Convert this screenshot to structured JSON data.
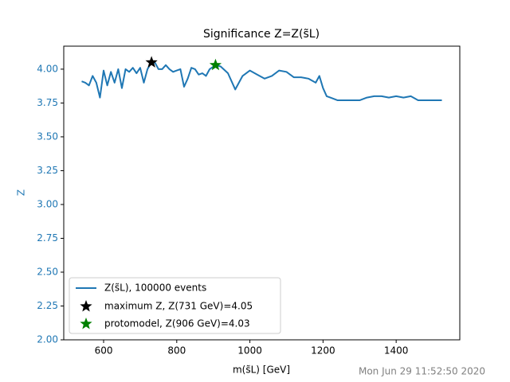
{
  "chart_data": {
    "type": "line",
    "title": "Significance Z=Z(s̃L)",
    "xlabel": "m(s̃L) [GeV]",
    "ylabel": "Z",
    "timestamp": "Mon Jun 29 11:52:50 2020",
    "x": [
      540,
      550,
      560,
      570,
      580,
      590,
      600,
      610,
      620,
      630,
      640,
      650,
      660,
      670,
      680,
      690,
      700,
      710,
      720,
      731,
      740,
      750,
      760,
      770,
      780,
      790,
      800,
      810,
      820,
      830,
      840,
      850,
      860,
      870,
      880,
      890,
      906,
      920,
      940,
      960,
      980,
      1000,
      1020,
      1040,
      1060,
      1080,
      1100,
      1120,
      1140,
      1160,
      1180,
      1190,
      1200,
      1210,
      1220,
      1240,
      1260,
      1280,
      1300,
      1320,
      1340,
      1360,
      1380,
      1400,
      1420,
      1440,
      1460,
      1480,
      1500,
      1525
    ],
    "series": [
      {
        "name": "Z(s̃L), 100000 events",
        "color": "#1f77b4",
        "values": [
          3.91,
          3.9,
          3.88,
          3.95,
          3.9,
          3.79,
          3.99,
          3.88,
          3.98,
          3.9,
          4.0,
          3.86,
          4.0,
          3.98,
          4.01,
          3.97,
          4.01,
          3.9,
          4.0,
          4.05,
          4.05,
          4.0,
          4.0,
          4.03,
          4.0,
          3.98,
          3.99,
          4.0,
          3.87,
          3.93,
          4.01,
          4.0,
          3.96,
          3.97,
          3.95,
          4.0,
          4.03,
          4.02,
          3.97,
          3.85,
          3.95,
          3.99,
          3.96,
          3.93,
          3.95,
          3.99,
          3.98,
          3.94,
          3.94,
          3.93,
          3.9,
          3.95,
          3.86,
          3.8,
          3.79,
          3.77,
          3.77,
          3.77,
          3.77,
          3.79,
          3.8,
          3.8,
          3.79,
          3.8,
          3.79,
          3.8,
          3.77,
          3.77,
          3.77,
          3.77
        ]
      }
    ],
    "markers": [
      {
        "name": "maximum Z, Z(731 GeV)=4.05",
        "color": "black",
        "x": 731,
        "y": 4.05
      },
      {
        "name": "protomodel, Z(906 GeV)=4.03",
        "color": "green",
        "x": 906,
        "y": 4.03
      }
    ],
    "xlim": [
      491,
      1574
    ],
    "ylim": [
      2.0,
      4.17
    ],
    "xticks": [
      600,
      800,
      1000,
      1200,
      1400
    ],
    "yticks": [
      {
        "value": 2.0,
        "label": "2.00"
      },
      {
        "value": 2.25,
        "label": "2.25"
      },
      {
        "value": 2.5,
        "label": "2.50"
      },
      {
        "value": 2.75,
        "label": "2.75"
      },
      {
        "value": 3.0,
        "label": "3.00"
      },
      {
        "value": 3.25,
        "label": "3.25"
      },
      {
        "value": 3.5,
        "label": "3.50"
      },
      {
        "value": 3.75,
        "label": "3.75"
      },
      {
        "value": 4.0,
        "label": "4.00"
      }
    ],
    "ytick_color": "#1f77b4",
    "legend": "lower left"
  }
}
